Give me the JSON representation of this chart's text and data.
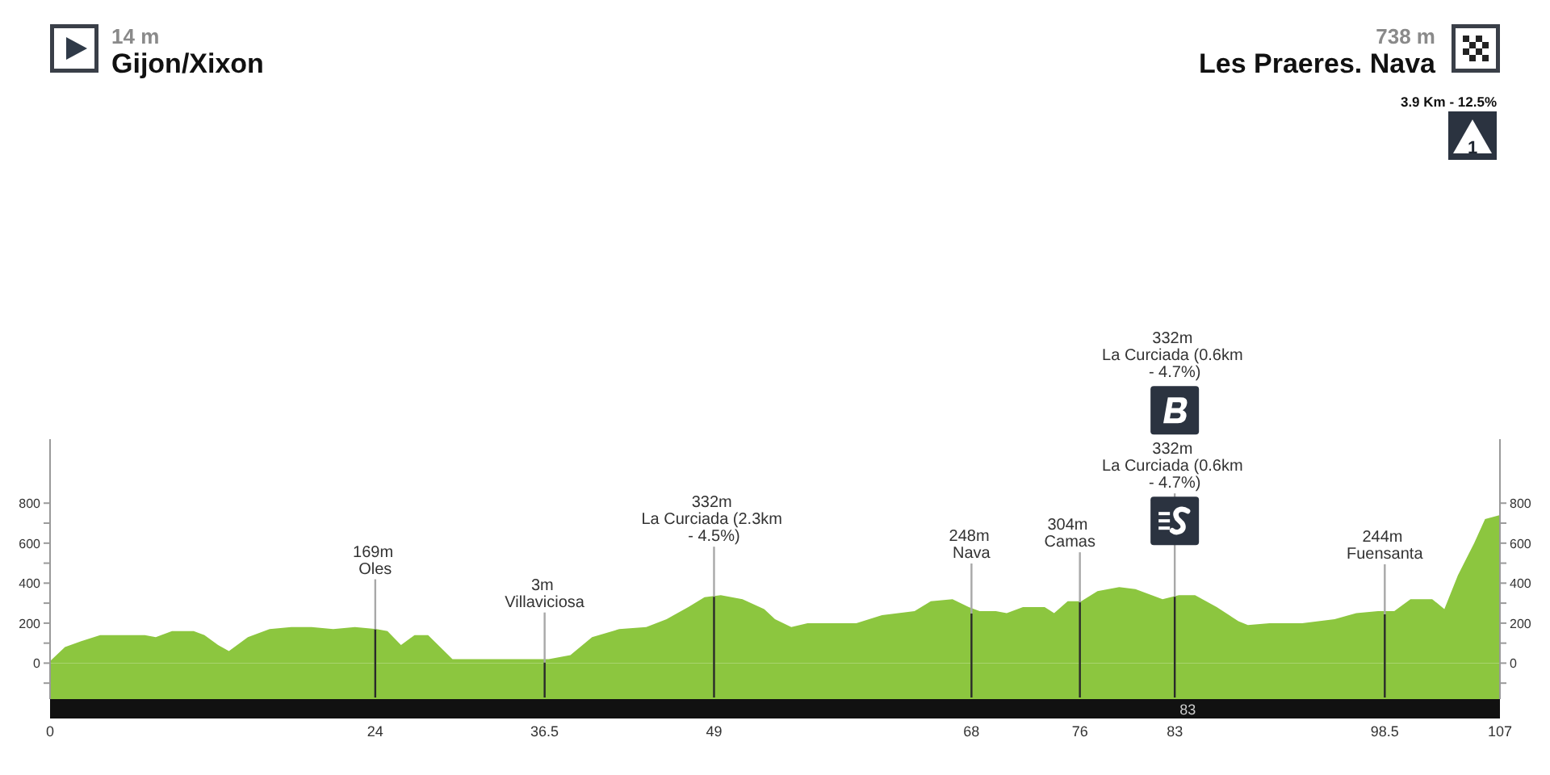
{
  "chart_data": {
    "type": "area",
    "color": "#8cc63f",
    "x": [
      0,
      1.1,
      2.3,
      3.7,
      5,
      7,
      7.8,
      9,
      10.6,
      11.4,
      12.4,
      13.2,
      14.6,
      16.2,
      17.8,
      19.3,
      20.9,
      22.5,
      24.1,
      24.9,
      25.9,
      26.9,
      27.9,
      29.7,
      32.1,
      36.8,
      38.4,
      40,
      42,
      44,
      45.5,
      47.1,
      48.3,
      49.5,
      51.1,
      52.7,
      53.5,
      54.7,
      55.9,
      57.4,
      59.5,
      61.4,
      63.8,
      65,
      66.6,
      67.8,
      68.6,
      69.8,
      70.6,
      71.8,
      73.4,
      74.1,
      75.1,
      76.1,
      77.3,
      78.9,
      80.1,
      81.3,
      82.1,
      83.3,
      84.5,
      86.1,
      87.7,
      88.4,
      90,
      92.4,
      94.8,
      96.4,
      98,
      99.2,
      100.4,
      102,
      102.9,
      103.9,
      105.1,
      105.9,
      107
    ],
    "values": [
      10,
      80,
      110,
      140,
      140,
      140,
      130,
      160,
      160,
      140,
      90,
      60,
      130,
      170,
      180,
      180,
      170,
      180,
      170,
      160,
      90,
      140,
      140,
      20,
      20,
      20,
      40,
      130,
      170,
      180,
      220,
      280,
      330,
      340,
      320,
      270,
      220,
      180,
      200,
      200,
      200,
      240,
      260,
      310,
      320,
      280,
      260,
      260,
      250,
      280,
      280,
      250,
      310,
      310,
      360,
      380,
      370,
      340,
      320,
      340,
      340,
      280,
      210,
      190,
      200,
      200,
      220,
      250,
      260,
      260,
      320,
      320,
      270,
      440,
      600,
      720,
      740
    ],
    "xlim": [
      0,
      107
    ],
    "xticks": [
      0,
      24,
      36.5,
      49,
      68,
      76,
      83,
      98.5,
      107
    ],
    "ylim": [
      -180,
      1120
    ],
    "yticks": [
      {
        "value": -100,
        "label": null
      },
      0,
      {
        "value": 100,
        "label": null
      },
      200,
      {
        "value": 300,
        "label": null
      },
      400,
      {
        "value": 500,
        "label": null
      },
      600,
      {
        "value": 700,
        "label": null
      },
      800
    ],
    "y2lim": [
      -180,
      1120
    ],
    "y2ticks": [
      {
        "value": -100,
        "label": null
      },
      0,
      {
        "value": 100,
        "label": null
      },
      200,
      {
        "value": 300,
        "label": null
      },
      400,
      {
        "value": 500,
        "label": null
      },
      600,
      {
        "value": 700,
        "label": null
      },
      800
    ],
    "bands": [
      {
        "axis": "y",
        "from": -180,
        "to": 0,
        "color": "#8cc63f"
      }
    ],
    "annotations": [
      "14 m",
      "Gijon/Xixon",
      "738 m",
      "Les Praeres. Nava",
      "3.9 Km - 12.5%",
      "1",
      {
        "text": "169m Oles",
        "x": 24,
        "y": 169
      },
      {
        "text": "3m Villaviciosa",
        "x": 36.5,
        "y": 3
      },
      {
        "text": "332m La Curciada (2.3km - 4.5%)",
        "x": 49,
        "y": 332
      },
      {
        "text": "248m Nava",
        "x": 68,
        "y": 248
      },
      {
        "text": "304m Camas",
        "x": 76,
        "y": 304
      },
      "332m La Curciada (0.6km - 4.7%)",
      {
        "text": "332m La Curciada (0.6km - 4.7%)",
        "x": 83,
        "y": 332
      },
      {
        "text": "244m Fuensanta",
        "x": 98.5,
        "y": 244
      },
      {
        "text": "83",
        "x": 83,
        "y": 332
      }
    ]
  }
}
